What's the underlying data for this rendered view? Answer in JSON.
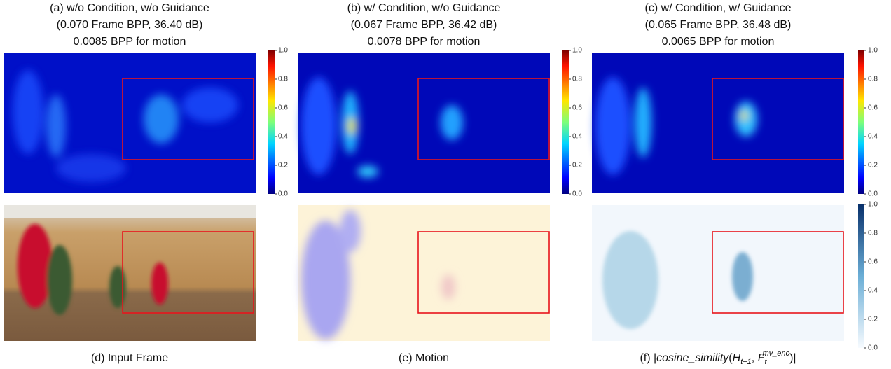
{
  "top_panels": [
    {
      "caption": [
        "(a) w/o Condition, w/o Guidance",
        "(0.070 Frame BPP, 36.40 dB)",
        "0.0085 BPP for motion"
      ]
    },
    {
      "caption": [
        "(b) w/ Condition, w/o Guidance",
        "(0.067 Frame BPP, 36.42 dB)",
        "0.0078 BPP for motion"
      ]
    },
    {
      "caption": [
        "(c) w/ Condition, w/ Guidance",
        "(0.065 Frame BPP, 36.48 dB)",
        "0.0065 BPP for motion"
      ]
    }
  ],
  "colorbar_ticks": [
    "1.0",
    "0.8",
    "0.6",
    "0.4",
    "0.2",
    "0.0"
  ],
  "bottom_panels": [
    {
      "caption": [
        {
          "text": "(d) Input Frame"
        }
      ]
    },
    {
      "caption": [
        {
          "text": "(e) Motion"
        }
      ]
    },
    {
      "caption": [
        {
          "text": "(f) |"
        },
        {
          "text": "cosine_simility",
          "style": "italic"
        },
        {
          "text": "("
        },
        {
          "text": "H",
          "style": "italic"
        },
        {
          "text": "t−1",
          "style": "sub"
        },
        {
          "text": ", "
        },
        {
          "text": "F",
          "style": "italic"
        },
        {
          "text": "t",
          "style": "sub"
        },
        {
          "text": "mv_enc",
          "style": "sup"
        },
        {
          "text": ")|"
        }
      ]
    }
  ]
}
